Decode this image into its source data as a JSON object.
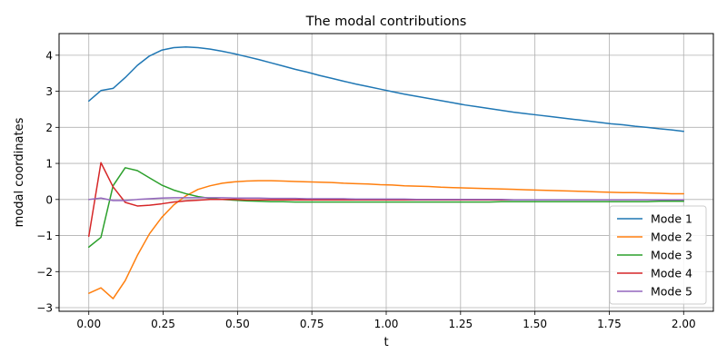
{
  "chart_data": {
    "type": "line",
    "title": "The modal contributions",
    "xlabel": "t",
    "ylabel": "modal coordinates",
    "xlim": [
      -0.1,
      2.1
    ],
    "ylim": [
      -3.1,
      4.6
    ],
    "xticks": [
      0.0,
      0.25,
      0.5,
      0.75,
      1.0,
      1.25,
      1.5,
      1.75,
      2.0
    ],
    "xtick_labels": [
      "0.00",
      "0.25",
      "0.50",
      "0.75",
      "1.00",
      "1.25",
      "1.50",
      "1.75",
      "2.00"
    ],
    "yticks": [
      -3,
      -2,
      -1,
      0,
      1,
      2,
      3,
      4
    ],
    "ytick_labels": [
      "−3",
      "−2",
      "−1",
      "0",
      "1",
      "2",
      "3",
      "4"
    ],
    "grid": true,
    "legend_position": "lower-right",
    "x": [
      0.0,
      0.0408,
      0.0816,
      0.1224,
      0.1633,
      0.2041,
      0.2449,
      0.2857,
      0.3265,
      0.3673,
      0.4082,
      0.449,
      0.4898,
      0.5306,
      0.5714,
      0.6122,
      0.6531,
      0.6939,
      0.7347,
      0.7755,
      0.8163,
      0.8571,
      0.898,
      0.9388,
      0.9796,
      1.0204,
      1.0612,
      1.102,
      1.1429,
      1.1837,
      1.2245,
      1.2653,
      1.3061,
      1.3469,
      1.3878,
      1.4286,
      1.4694,
      1.5102,
      1.551,
      1.5918,
      1.6327,
      1.6735,
      1.7143,
      1.7551,
      1.7959,
      1.8367,
      1.8776,
      1.9184,
      1.9592,
      2.0
    ],
    "series": [
      {
        "name": "Mode 1",
        "color": "#1f77b4",
        "values": [
          2.73,
          3.02,
          3.08,
          3.38,
          3.72,
          3.98,
          4.14,
          4.21,
          4.23,
          4.21,
          4.17,
          4.11,
          4.04,
          3.96,
          3.88,
          3.79,
          3.7,
          3.61,
          3.53,
          3.44,
          3.36,
          3.28,
          3.2,
          3.13,
          3.06,
          2.99,
          2.92,
          2.86,
          2.8,
          2.74,
          2.68,
          2.62,
          2.57,
          2.52,
          2.47,
          2.42,
          2.38,
          2.34,
          2.3,
          2.26,
          2.22,
          2.18,
          2.14,
          2.1,
          2.07,
          2.03,
          2.0,
          1.96,
          1.93,
          1.89
        ]
      },
      {
        "name": "Mode 2",
        "color": "#ff7f0e",
        "values": [
          -2.6,
          -2.45,
          -2.75,
          -2.25,
          -1.55,
          -0.95,
          -0.5,
          -0.15,
          0.1,
          0.28,
          0.38,
          0.45,
          0.49,
          0.51,
          0.52,
          0.52,
          0.51,
          0.5,
          0.49,
          0.48,
          0.47,
          0.45,
          0.44,
          0.43,
          0.41,
          0.4,
          0.38,
          0.37,
          0.36,
          0.34,
          0.33,
          0.32,
          0.31,
          0.3,
          0.29,
          0.28,
          0.27,
          0.26,
          0.25,
          0.24,
          0.23,
          0.22,
          0.21,
          0.2,
          0.19,
          0.19,
          0.18,
          0.17,
          0.16,
          0.16
        ]
      },
      {
        "name": "Mode 3",
        "color": "#2ca02c",
        "values": [
          -1.32,
          -1.05,
          0.38,
          0.88,
          0.8,
          0.6,
          0.4,
          0.26,
          0.16,
          0.08,
          0.03,
          0.0,
          -0.02,
          -0.04,
          -0.05,
          -0.06,
          -0.06,
          -0.07,
          -0.07,
          -0.07,
          -0.07,
          -0.07,
          -0.07,
          -0.07,
          -0.07,
          -0.07,
          -0.07,
          -0.07,
          -0.07,
          -0.07,
          -0.07,
          -0.07,
          -0.07,
          -0.07,
          -0.06,
          -0.06,
          -0.06,
          -0.06,
          -0.06,
          -0.06,
          -0.06,
          -0.06,
          -0.06,
          -0.06,
          -0.06,
          -0.06,
          -0.06,
          -0.05,
          -0.05,
          -0.05
        ]
      },
      {
        "name": "Mode 4",
        "color": "#d62728",
        "values": [
          -1.02,
          1.02,
          0.35,
          -0.08,
          -0.18,
          -0.16,
          -0.12,
          -0.07,
          -0.04,
          -0.02,
          0.0,
          0.0,
          0.0,
          -0.01,
          -0.01,
          -0.01,
          -0.01,
          -0.01,
          -0.01,
          -0.01,
          -0.01,
          -0.01,
          -0.01,
          -0.01,
          -0.01,
          -0.01,
          -0.01,
          -0.01,
          -0.01,
          -0.01,
          -0.01,
          -0.01,
          -0.01,
          -0.01,
          -0.01,
          -0.01,
          -0.01,
          -0.01,
          -0.01,
          -0.01,
          -0.01,
          -0.01,
          -0.01,
          -0.01,
          -0.01,
          -0.01,
          -0.01,
          -0.01,
          -0.01,
          -0.01
        ]
      },
      {
        "name": "Mode 5",
        "color": "#9467bd",
        "values": [
          0.0,
          0.04,
          -0.03,
          -0.03,
          0.0,
          0.02,
          0.04,
          0.05,
          0.05,
          0.05,
          0.05,
          0.05,
          0.04,
          0.04,
          0.04,
          0.03,
          0.03,
          0.03,
          0.02,
          0.02,
          0.02,
          0.02,
          0.01,
          0.01,
          0.01,
          0.01,
          0.01,
          0.0,
          0.0,
          0.0,
          0.0,
          0.0,
          0.0,
          0.0,
          0.0,
          -0.01,
          -0.01,
          -0.01,
          -0.01,
          -0.01,
          -0.01,
          -0.01,
          -0.01,
          -0.01,
          -0.01,
          -0.01,
          -0.01,
          -0.01,
          -0.01,
          -0.01
        ]
      }
    ]
  }
}
